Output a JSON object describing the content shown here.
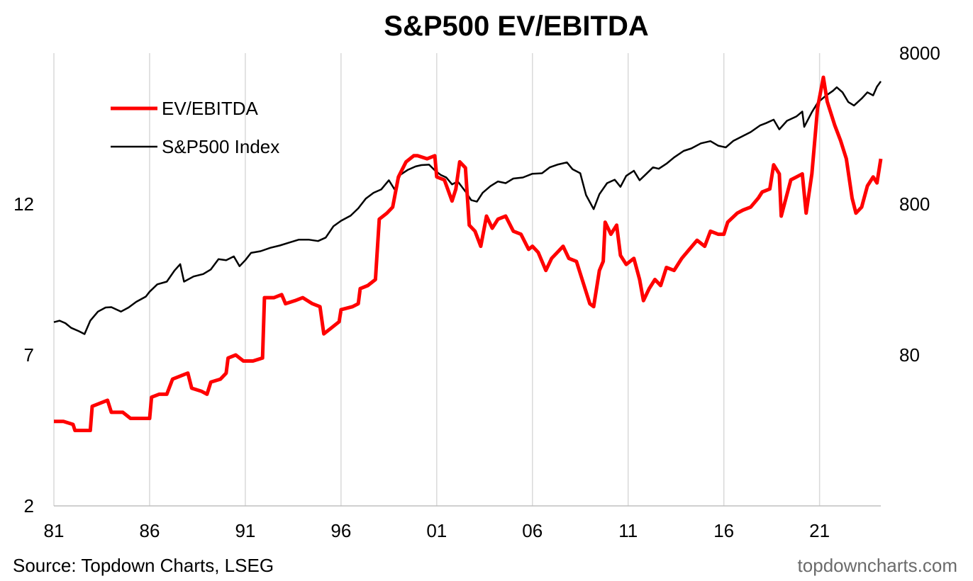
{
  "chart_data": {
    "type": "line",
    "title": "S&P500 EV/EBITDA",
    "xlabel": "",
    "x_tick_labels": [
      "81",
      "86",
      "91",
      "96",
      "01",
      "06",
      "11",
      "16",
      "21"
    ],
    "x_tick_years": [
      1981,
      1986,
      1991,
      1996,
      2001,
      2006,
      2011,
      2016,
      2021
    ],
    "xlim": [
      1981,
      2024.2
    ],
    "left_axis": {
      "ticks": [
        2,
        7,
        12
      ],
      "tick_labels": [
        "2",
        "7",
        "12"
      ],
      "ylim": [
        2,
        17
      ],
      "scale": "linear"
    },
    "right_axis": {
      "ticks": [
        80,
        800,
        8000
      ],
      "tick_labels": [
        "80",
        "800",
        "8000"
      ],
      "ylim": [
        8,
        8000
      ],
      "scale": "log"
    },
    "grid": "vertical",
    "legend": "top-left",
    "series": [
      {
        "name": "EV/EBITDA",
        "axis": "left",
        "color": "#ff0000",
        "points": [
          [
            1981.0,
            4.8
          ],
          [
            1981.5,
            4.8
          ],
          [
            1982.0,
            4.7
          ],
          [
            1982.1,
            4.5
          ],
          [
            1982.9,
            4.5
          ],
          [
            1983.0,
            5.3
          ],
          [
            1983.4,
            5.4
          ],
          [
            1983.8,
            5.5
          ],
          [
            1984.0,
            5.1
          ],
          [
            1984.6,
            5.1
          ],
          [
            1985.0,
            4.9
          ],
          [
            1985.5,
            4.9
          ],
          [
            1986.0,
            4.9
          ],
          [
            1986.1,
            5.6
          ],
          [
            1986.5,
            5.7
          ],
          [
            1986.9,
            5.7
          ],
          [
            1987.2,
            6.2
          ],
          [
            1987.6,
            6.3
          ],
          [
            1988.0,
            6.4
          ],
          [
            1988.2,
            5.9
          ],
          [
            1988.7,
            5.8
          ],
          [
            1989.0,
            5.7
          ],
          [
            1989.2,
            6.1
          ],
          [
            1989.7,
            6.2
          ],
          [
            1990.0,
            6.4
          ],
          [
            1990.1,
            6.9
          ],
          [
            1990.5,
            7.0
          ],
          [
            1990.9,
            6.8
          ],
          [
            1991.4,
            6.8
          ],
          [
            1991.9,
            6.9
          ],
          [
            1992.0,
            8.9
          ],
          [
            1992.5,
            8.9
          ],
          [
            1992.9,
            9.0
          ],
          [
            1993.1,
            8.7
          ],
          [
            1993.6,
            8.8
          ],
          [
            1994.0,
            8.9
          ],
          [
            1994.5,
            8.7
          ],
          [
            1994.9,
            8.6
          ],
          [
            1995.1,
            7.7
          ],
          [
            1995.5,
            7.9
          ],
          [
            1995.9,
            8.1
          ],
          [
            1996.0,
            8.5
          ],
          [
            1996.6,
            8.6
          ],
          [
            1996.9,
            8.7
          ],
          [
            1997.0,
            9.2
          ],
          [
            1997.4,
            9.3
          ],
          [
            1997.8,
            9.5
          ],
          [
            1998.0,
            11.5
          ],
          [
            1998.4,
            11.7
          ],
          [
            1998.7,
            11.9
          ],
          [
            1999.0,
            12.9
          ],
          [
            1999.4,
            13.4
          ],
          [
            1999.8,
            13.6
          ],
          [
            2000.0,
            13.6
          ],
          [
            2000.5,
            13.5
          ],
          [
            2000.9,
            13.6
          ],
          [
            2001.0,
            12.9
          ],
          [
            2001.4,
            12.8
          ],
          [
            2001.8,
            12.1
          ],
          [
            2002.0,
            12.5
          ],
          [
            2002.2,
            13.4
          ],
          [
            2002.5,
            13.2
          ],
          [
            2002.7,
            11.3
          ],
          [
            2003.0,
            11.1
          ],
          [
            2003.3,
            10.6
          ],
          [
            2003.6,
            11.6
          ],
          [
            2003.9,
            11.2
          ],
          [
            2004.2,
            11.5
          ],
          [
            2004.6,
            11.6
          ],
          [
            2005.0,
            11.1
          ],
          [
            2005.4,
            11.0
          ],
          [
            2005.8,
            10.5
          ],
          [
            2006.0,
            10.6
          ],
          [
            2006.3,
            10.4
          ],
          [
            2006.7,
            9.8
          ],
          [
            2007.0,
            10.2
          ],
          [
            2007.3,
            10.4
          ],
          [
            2007.6,
            10.6
          ],
          [
            2007.9,
            10.2
          ],
          [
            2008.3,
            10.1
          ],
          [
            2008.6,
            9.5
          ],
          [
            2009.0,
            8.7
          ],
          [
            2009.2,
            8.6
          ],
          [
            2009.5,
            9.8
          ],
          [
            2009.7,
            10.1
          ],
          [
            2009.8,
            11.4
          ],
          [
            2010.1,
            11.0
          ],
          [
            2010.4,
            11.3
          ],
          [
            2010.6,
            10.3
          ],
          [
            2010.9,
            10.0
          ],
          [
            2011.3,
            10.2
          ],
          [
            2011.6,
            9.5
          ],
          [
            2011.8,
            8.8
          ],
          [
            2012.1,
            9.2
          ],
          [
            2012.4,
            9.5
          ],
          [
            2012.7,
            9.3
          ],
          [
            2013.0,
            9.9
          ],
          [
            2013.4,
            9.8
          ],
          [
            2013.8,
            10.2
          ],
          [
            2014.2,
            10.5
          ],
          [
            2014.6,
            10.8
          ],
          [
            2015.0,
            10.6
          ],
          [
            2015.3,
            11.1
          ],
          [
            2015.7,
            11.0
          ],
          [
            2016.0,
            11.0
          ],
          [
            2016.2,
            11.4
          ],
          [
            2016.7,
            11.7
          ],
          [
            2017.0,
            11.8
          ],
          [
            2017.4,
            11.9
          ],
          [
            2017.8,
            12.2
          ],
          [
            2018.0,
            12.4
          ],
          [
            2018.4,
            12.5
          ],
          [
            2018.6,
            13.3
          ],
          [
            2018.9,
            13.0
          ],
          [
            2019.0,
            11.6
          ],
          [
            2019.5,
            12.8
          ],
          [
            2019.8,
            12.9
          ],
          [
            2020.1,
            13.0
          ],
          [
            2020.3,
            11.7
          ],
          [
            2020.6,
            13.0
          ],
          [
            2020.9,
            15.2
          ],
          [
            2021.2,
            16.2
          ],
          [
            2021.4,
            15.4
          ],
          [
            2021.8,
            14.6
          ],
          [
            2022.1,
            14.1
          ],
          [
            2022.4,
            13.5
          ],
          [
            2022.7,
            12.2
          ],
          [
            2022.9,
            11.7
          ],
          [
            2023.2,
            11.9
          ],
          [
            2023.5,
            12.6
          ],
          [
            2023.8,
            12.9
          ],
          [
            2024.0,
            12.7
          ],
          [
            2024.2,
            13.5
          ]
        ]
      },
      {
        "name": "S&P500 Index",
        "axis": "right",
        "color": "#000000",
        "points": [
          [
            1981.0,
            132
          ],
          [
            1981.3,
            135
          ],
          [
            1981.6,
            130
          ],
          [
            1981.9,
            121
          ],
          [
            1982.3,
            115
          ],
          [
            1982.6,
            110
          ],
          [
            1982.9,
            135
          ],
          [
            1983.3,
            155
          ],
          [
            1983.7,
            165
          ],
          [
            1984.0,
            166
          ],
          [
            1984.5,
            155
          ],
          [
            1984.9,
            165
          ],
          [
            1985.3,
            180
          ],
          [
            1985.8,
            195
          ],
          [
            1986.0,
            210
          ],
          [
            1986.4,
            235
          ],
          [
            1986.9,
            245
          ],
          [
            1987.3,
            290
          ],
          [
            1987.6,
            320
          ],
          [
            1987.8,
            245
          ],
          [
            1988.3,
            265
          ],
          [
            1988.8,
            275
          ],
          [
            1989.2,
            295
          ],
          [
            1989.6,
            345
          ],
          [
            1990.0,
            340
          ],
          [
            1990.4,
            360
          ],
          [
            1990.7,
            310
          ],
          [
            1991.0,
            340
          ],
          [
            1991.3,
            380
          ],
          [
            1991.8,
            390
          ],
          [
            1992.3,
            410
          ],
          [
            1992.8,
            425
          ],
          [
            1993.3,
            445
          ],
          [
            1993.8,
            465
          ],
          [
            1994.3,
            465
          ],
          [
            1994.8,
            455
          ],
          [
            1995.2,
            480
          ],
          [
            1995.6,
            570
          ],
          [
            1996.0,
            620
          ],
          [
            1996.5,
            670
          ],
          [
            1996.9,
            750
          ],
          [
            1997.3,
            870
          ],
          [
            1997.7,
            950
          ],
          [
            1998.1,
            1000
          ],
          [
            1998.5,
            1150
          ],
          [
            1998.8,
            1000
          ],
          [
            1999.1,
            1250
          ],
          [
            1999.5,
            1350
          ],
          [
            1999.9,
            1420
          ],
          [
            2000.2,
            1450
          ],
          [
            2000.6,
            1460
          ],
          [
            2000.9,
            1340
          ],
          [
            2001.2,
            1250
          ],
          [
            2001.5,
            1200
          ],
          [
            2001.8,
            1080
          ],
          [
            2002.1,
            1130
          ],
          [
            2002.5,
            970
          ],
          [
            2002.8,
            850
          ],
          [
            2003.1,
            830
          ],
          [
            2003.4,
            950
          ],
          [
            2003.8,
            1050
          ],
          [
            2004.2,
            1130
          ],
          [
            2004.6,
            1100
          ],
          [
            2005.0,
            1180
          ],
          [
            2005.5,
            1200
          ],
          [
            2006.0,
            1270
          ],
          [
            2006.5,
            1280
          ],
          [
            2006.9,
            1400
          ],
          [
            2007.3,
            1460
          ],
          [
            2007.8,
            1510
          ],
          [
            2008.1,
            1360
          ],
          [
            2008.5,
            1280
          ],
          [
            2008.8,
            920
          ],
          [
            2009.2,
            740
          ],
          [
            2009.5,
            930
          ],
          [
            2009.9,
            1100
          ],
          [
            2010.3,
            1160
          ],
          [
            2010.6,
            1040
          ],
          [
            2010.9,
            1230
          ],
          [
            2011.3,
            1330
          ],
          [
            2011.6,
            1150
          ],
          [
            2011.9,
            1250
          ],
          [
            2012.3,
            1400
          ],
          [
            2012.6,
            1370
          ],
          [
            2013.0,
            1480
          ],
          [
            2013.4,
            1630
          ],
          [
            2013.9,
            1800
          ],
          [
            2014.3,
            1870
          ],
          [
            2014.8,
            2020
          ],
          [
            2015.3,
            2090
          ],
          [
            2015.7,
            1950
          ],
          [
            2016.1,
            1900
          ],
          [
            2016.5,
            2100
          ],
          [
            2016.9,
            2230
          ],
          [
            2017.4,
            2400
          ],
          [
            2017.9,
            2660
          ],
          [
            2018.2,
            2750
          ],
          [
            2018.6,
            2900
          ],
          [
            2018.9,
            2500
          ],
          [
            2019.3,
            2850
          ],
          [
            2019.8,
            3050
          ],
          [
            2020.1,
            3280
          ],
          [
            2020.2,
            2600
          ],
          [
            2020.6,
            3250
          ],
          [
            2020.9,
            3750
          ],
          [
            2021.3,
            4150
          ],
          [
            2021.7,
            4500
          ],
          [
            2021.9,
            4750
          ],
          [
            2022.2,
            4400
          ],
          [
            2022.5,
            3800
          ],
          [
            2022.8,
            3600
          ],
          [
            2023.2,
            4000
          ],
          [
            2023.5,
            4400
          ],
          [
            2023.8,
            4200
          ],
          [
            2024.0,
            4800
          ],
          [
            2024.2,
            5200
          ]
        ]
      }
    ]
  },
  "footer": {
    "source": "Source: Topdown Charts, LSEG",
    "brand": "topdowncharts.com"
  }
}
